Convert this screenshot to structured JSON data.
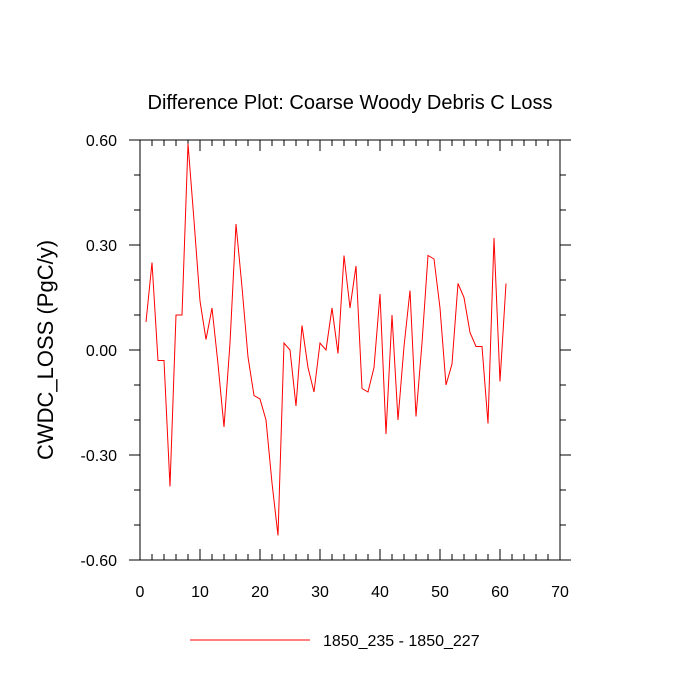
{
  "chart_data": {
    "type": "line",
    "title": "Difference Plot: Coarse Woody Debris C Loss",
    "xlabel": "",
    "ylabel": "CWDC_LOSS  (PgC/y)",
    "xlim": [
      0,
      70
    ],
    "ylim": [
      -0.6,
      0.6
    ],
    "xticks": [
      0,
      10,
      20,
      30,
      40,
      50,
      60,
      70
    ],
    "xtick_labels": [
      "0",
      "10",
      "20",
      "30",
      "40",
      "50",
      "60",
      "70"
    ],
    "yticks": [
      -0.6,
      -0.3,
      0.0,
      0.3,
      0.6
    ],
    "ytick_labels": [
      "-0.60",
      "-0.30",
      "0.00",
      "0.30",
      "0.60"
    ],
    "grid": false,
    "legend_position": "bottom",
    "series": [
      {
        "name": "1850_235 - 1850_227",
        "color": "#ff0000",
        "x": [
          1,
          2,
          3,
          4,
          5,
          6,
          7,
          8,
          9,
          10,
          11,
          12,
          13,
          14,
          15,
          16,
          17,
          18,
          19,
          20,
          21,
          22,
          23,
          24,
          25,
          26,
          27,
          28,
          29,
          30,
          31,
          32,
          33,
          34,
          35,
          36,
          37,
          38,
          39,
          40,
          41,
          42,
          43,
          44,
          45,
          46,
          47,
          48,
          49,
          50,
          51,
          52,
          53,
          54,
          55,
          56,
          57,
          58,
          59,
          60,
          61
        ],
        "values": [
          0.08,
          0.25,
          -0.03,
          -0.03,
          -0.39,
          0.1,
          0.1,
          0.59,
          0.37,
          0.14,
          0.03,
          0.12,
          -0.04,
          -0.22,
          0.02,
          0.36,
          0.18,
          -0.02,
          -0.13,
          -0.14,
          -0.2,
          -0.38,
          -0.53,
          0.02,
          0.0,
          -0.16,
          0.07,
          -0.05,
          -0.12,
          0.02,
          0.0,
          0.12,
          -0.01,
          0.27,
          0.12,
          0.24,
          -0.11,
          -0.12,
          -0.05,
          0.16,
          -0.24,
          0.1,
          -0.2,
          0.01,
          0.17,
          -0.19,
          0.02,
          0.27,
          0.26,
          0.12,
          -0.1,
          -0.04,
          0.19,
          0.15,
          0.05,
          0.01,
          0.01,
          -0.21,
          0.32,
          -0.09,
          0.19
        ]
      }
    ]
  }
}
